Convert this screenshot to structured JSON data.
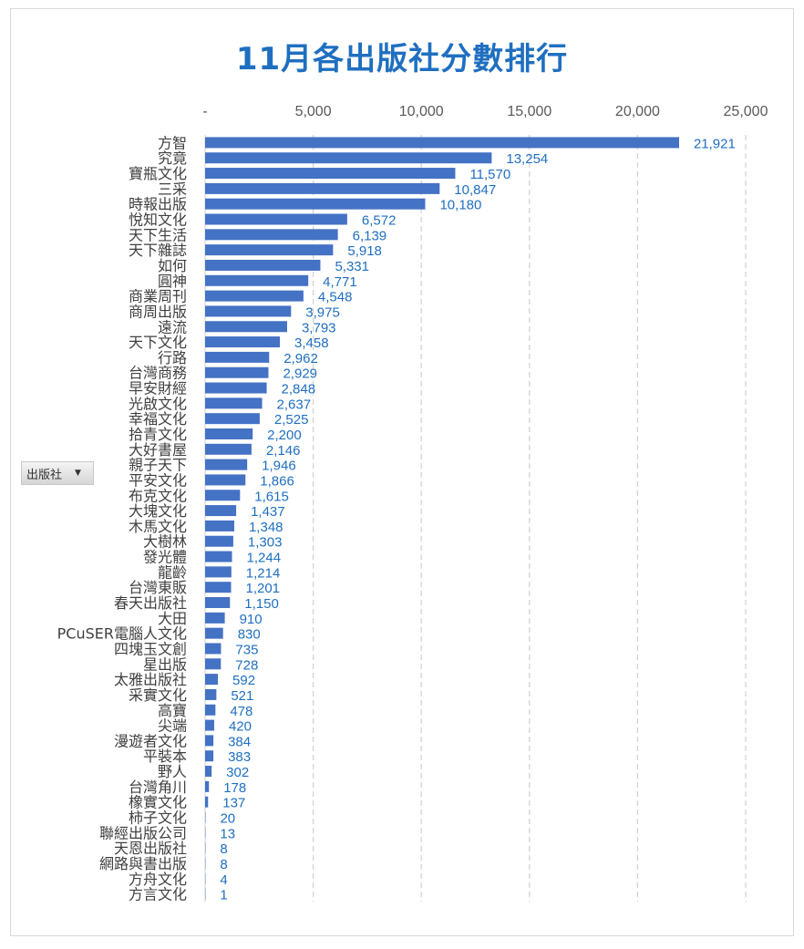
{
  "chart_data": {
    "type": "bar",
    "orientation": "horizontal",
    "title": "11月各出版社分數排行",
    "field_button": "出版社",
    "xlim": [
      0,
      25000
    ],
    "x_ticks": [
      "-",
      "5,000",
      "10,000",
      "15,000",
      "20,000",
      "25,000"
    ],
    "x_tick_values": [
      0,
      5000,
      10000,
      15000,
      20000,
      25000
    ],
    "axis_position": "top",
    "grid": "vertical dashed",
    "bar_color": "#4472c4",
    "label_color": "#1f6fc0",
    "title_color": "#1f6fc0",
    "categories": [
      "方智",
      "究竟",
      "寶瓶文化",
      "三采",
      "時報出版",
      "悅知文化",
      "天下生活",
      "天下雜誌",
      "如何",
      "圓神",
      "商業周刊",
      "商周出版",
      "遠流",
      "天下文化",
      "行路",
      "台灣商務",
      "早安財經",
      "光啟文化",
      "幸福文化",
      "拾青文化",
      "大好書屋",
      "親子天下",
      "平安文化",
      "布克文化",
      "大塊文化",
      "木馬文化",
      "大樹林",
      "發光體",
      "龍齡",
      "台灣東販",
      "春天出版社",
      "大田",
      "PCuSER電腦人文化",
      "四塊玉文創",
      "星出版",
      "太雅出版社",
      "采實文化",
      "高寶",
      "尖端",
      "漫遊者文化",
      "平裝本",
      "野人",
      "台灣角川",
      "橡實文化",
      "柿子文化",
      "聯經出版公司",
      "天恩出版社",
      "網路與書出版",
      "方舟文化",
      "方言文化"
    ],
    "values": [
      21921,
      13254,
      11570,
      10847,
      10180,
      6572,
      6139,
      5918,
      5331,
      4771,
      4548,
      3975,
      3793,
      3458,
      2962,
      2929,
      2848,
      2637,
      2525,
      2200,
      2146,
      1946,
      1866,
      1615,
      1437,
      1348,
      1303,
      1244,
      1214,
      1201,
      1150,
      910,
      830,
      735,
      728,
      592,
      521,
      478,
      420,
      384,
      383,
      302,
      178,
      137,
      20,
      13,
      8,
      8,
      4,
      1
    ],
    "value_labels": [
      "21,921",
      "13,254",
      "11,570",
      "10,847",
      "10,180",
      "6,572",
      "6,139",
      "5,918",
      "5,331",
      "4,771",
      "4,548",
      "3,975",
      "3,793",
      "3,458",
      "2,962",
      "2,929",
      "2,848",
      "2,637",
      "2,525",
      "2,200",
      "2,146",
      "1,946",
      "1,866",
      "1,615",
      "1,437",
      "1,348",
      "1,303",
      "1,244",
      "1,214",
      "1,201",
      "1,150",
      "910",
      "830",
      "735",
      "728",
      "592",
      "521",
      "478",
      "420",
      "384",
      "383",
      "302",
      "178",
      "137",
      "20",
      "13",
      "8",
      "8",
      "4",
      "1"
    ]
  }
}
